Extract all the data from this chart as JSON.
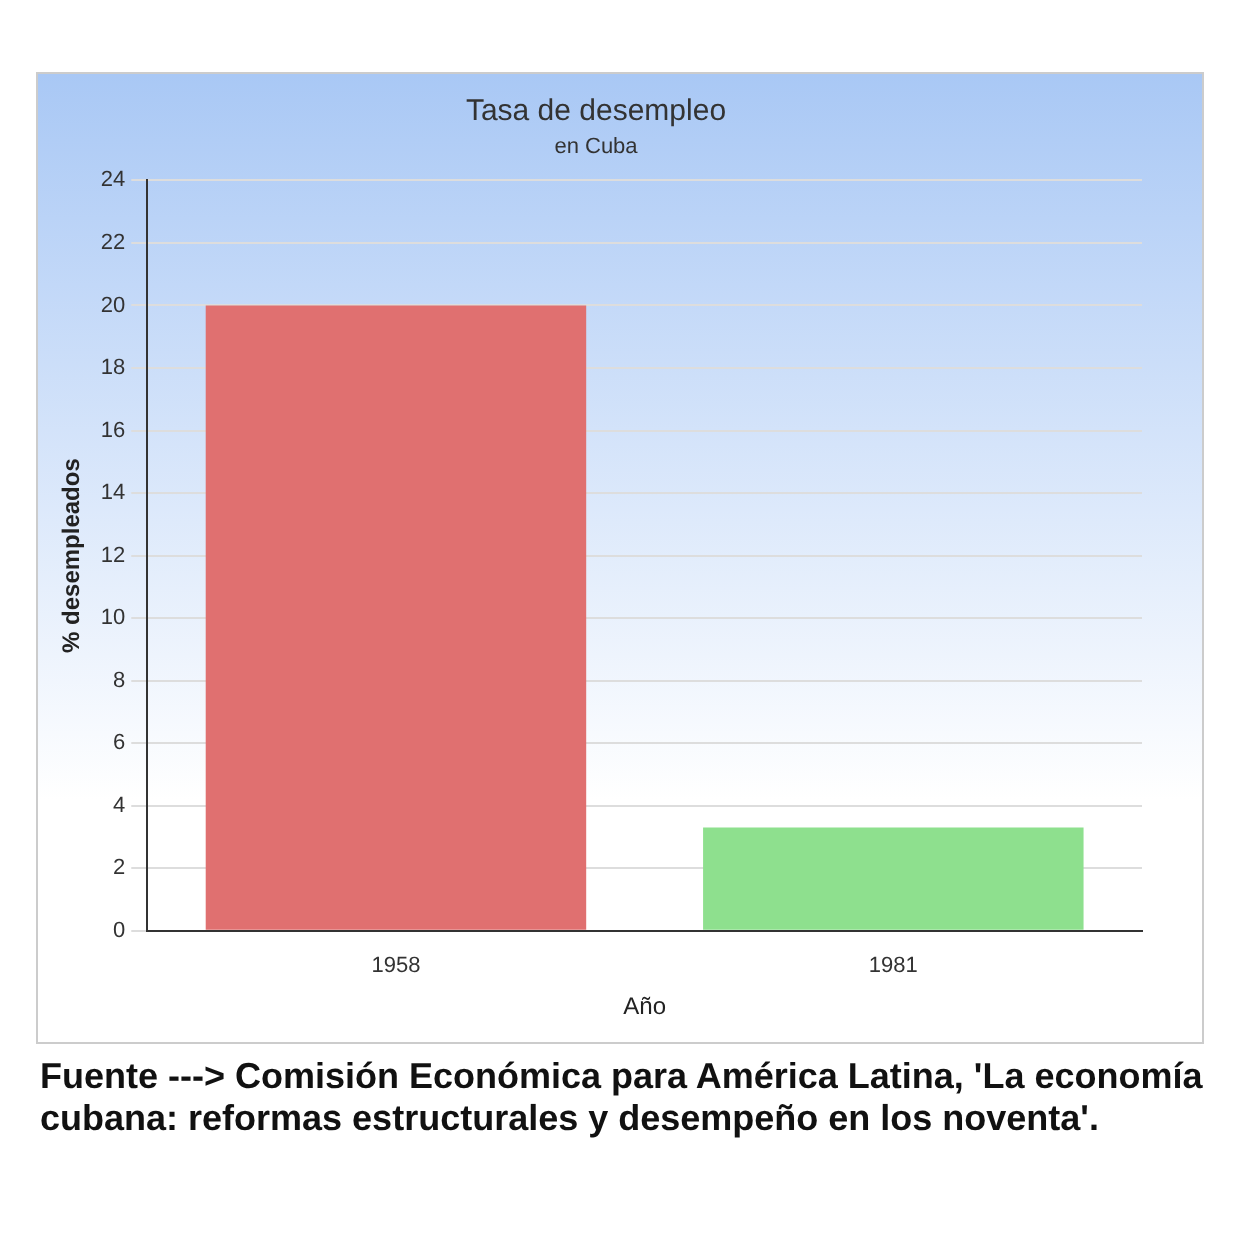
{
  "chart_data": {
    "type": "bar",
    "title": "Tasa de desempleo",
    "subtitle": "en Cuba",
    "xlabel": "Año",
    "ylabel": "% desempleados",
    "categories": [
      "1958",
      "1981"
    ],
    "values": [
      20,
      3.3
    ],
    "colors": [
      "#e07070",
      "#8ee08e"
    ],
    "ylim": [
      0,
      24
    ],
    "yticks": [
      0,
      2,
      4,
      6,
      8,
      10,
      12,
      14,
      16,
      18,
      20,
      22,
      24
    ],
    "grid": "y",
    "legend": false,
    "annotations": [
      "Fuente --->  Comisión Económica para América Latina, 'La economía cubana: reformas estructurales y desempeño en los noventa'."
    ]
  }
}
